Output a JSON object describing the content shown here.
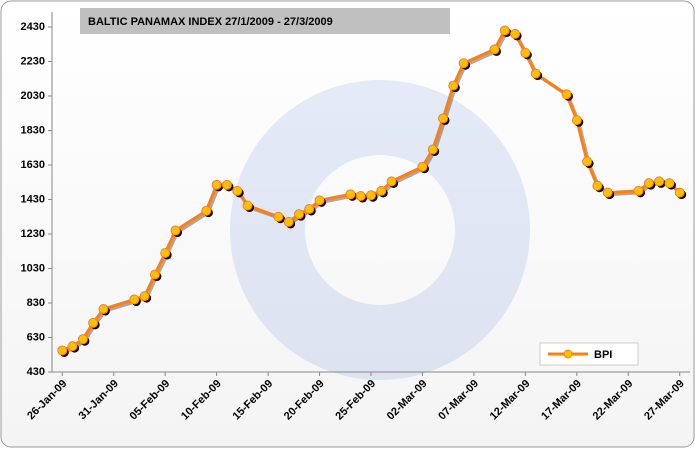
{
  "chart_data": {
    "type": "line",
    "title": "BALTIC PANAMAX INDEX 27/1/2009 - 27/3/2009",
    "x": [
      "26-Jan-09",
      "27-Jan-09",
      "28-Jan-09",
      "29-Jan-09",
      "30-Jan-09",
      "02-Feb-09",
      "03-Feb-09",
      "04-Feb-09",
      "05-Feb-09",
      "06-Feb-09",
      "09-Feb-09",
      "10-Feb-09",
      "11-Feb-09",
      "12-Feb-09",
      "13-Feb-09",
      "16-Feb-09",
      "17-Feb-09",
      "18-Feb-09",
      "19-Feb-09",
      "20-Feb-09",
      "23-Feb-09",
      "24-Feb-09",
      "25-Feb-09",
      "26-Feb-09",
      "27-Feb-09",
      "02-Mar-09",
      "03-Mar-09",
      "04-Mar-09",
      "05-Mar-09",
      "06-Mar-09",
      "09-Mar-09",
      "10-Mar-09",
      "11-Mar-09",
      "12-Mar-09",
      "13-Mar-09",
      "16-Mar-09",
      "17-Mar-09",
      "18-Mar-09",
      "19-Mar-09",
      "20-Mar-09",
      "23-Mar-09",
      "24-Mar-09",
      "25-Mar-09",
      "26-Mar-09",
      "27-Mar-09"
    ],
    "series": [
      {
        "name": "BPI",
        "color": "#ff7f0e",
        "marker_color": "#ffc000",
        "values": [
          555,
          580,
          620,
          715,
          795,
          850,
          870,
          995,
          1120,
          1250,
          1365,
          1515,
          1515,
          1480,
          1395,
          1330,
          1300,
          1345,
          1375,
          1425,
          1460,
          1450,
          1455,
          1480,
          1535,
          1620,
          1720,
          1900,
          2090,
          2220,
          2300,
          2410,
          2390,
          2280,
          2160,
          2040,
          1890,
          1650,
          1510,
          1470,
          1480,
          1525,
          1535,
          1525,
          1470
        ]
      }
    ],
    "xlim": [
      "25-Jan-09",
      "28-Mar-09"
    ],
    "xticks": [
      "26-Jan-09",
      "31-Jan-09",
      "05-Feb-09",
      "10-Feb-09",
      "15-Feb-09",
      "20-Feb-09",
      "25-Feb-09",
      "02-Mar-09",
      "07-Mar-09",
      "12-Mar-09",
      "17-Mar-09",
      "22-Mar-09",
      "27-Mar-09"
    ],
    "ylim": [
      430,
      2430
    ],
    "yticks": [
      430,
      630,
      830,
      1030,
      1230,
      1430,
      1630,
      1830,
      2030,
      2230,
      2430
    ],
    "legend": "lower right",
    "grid": false
  }
}
